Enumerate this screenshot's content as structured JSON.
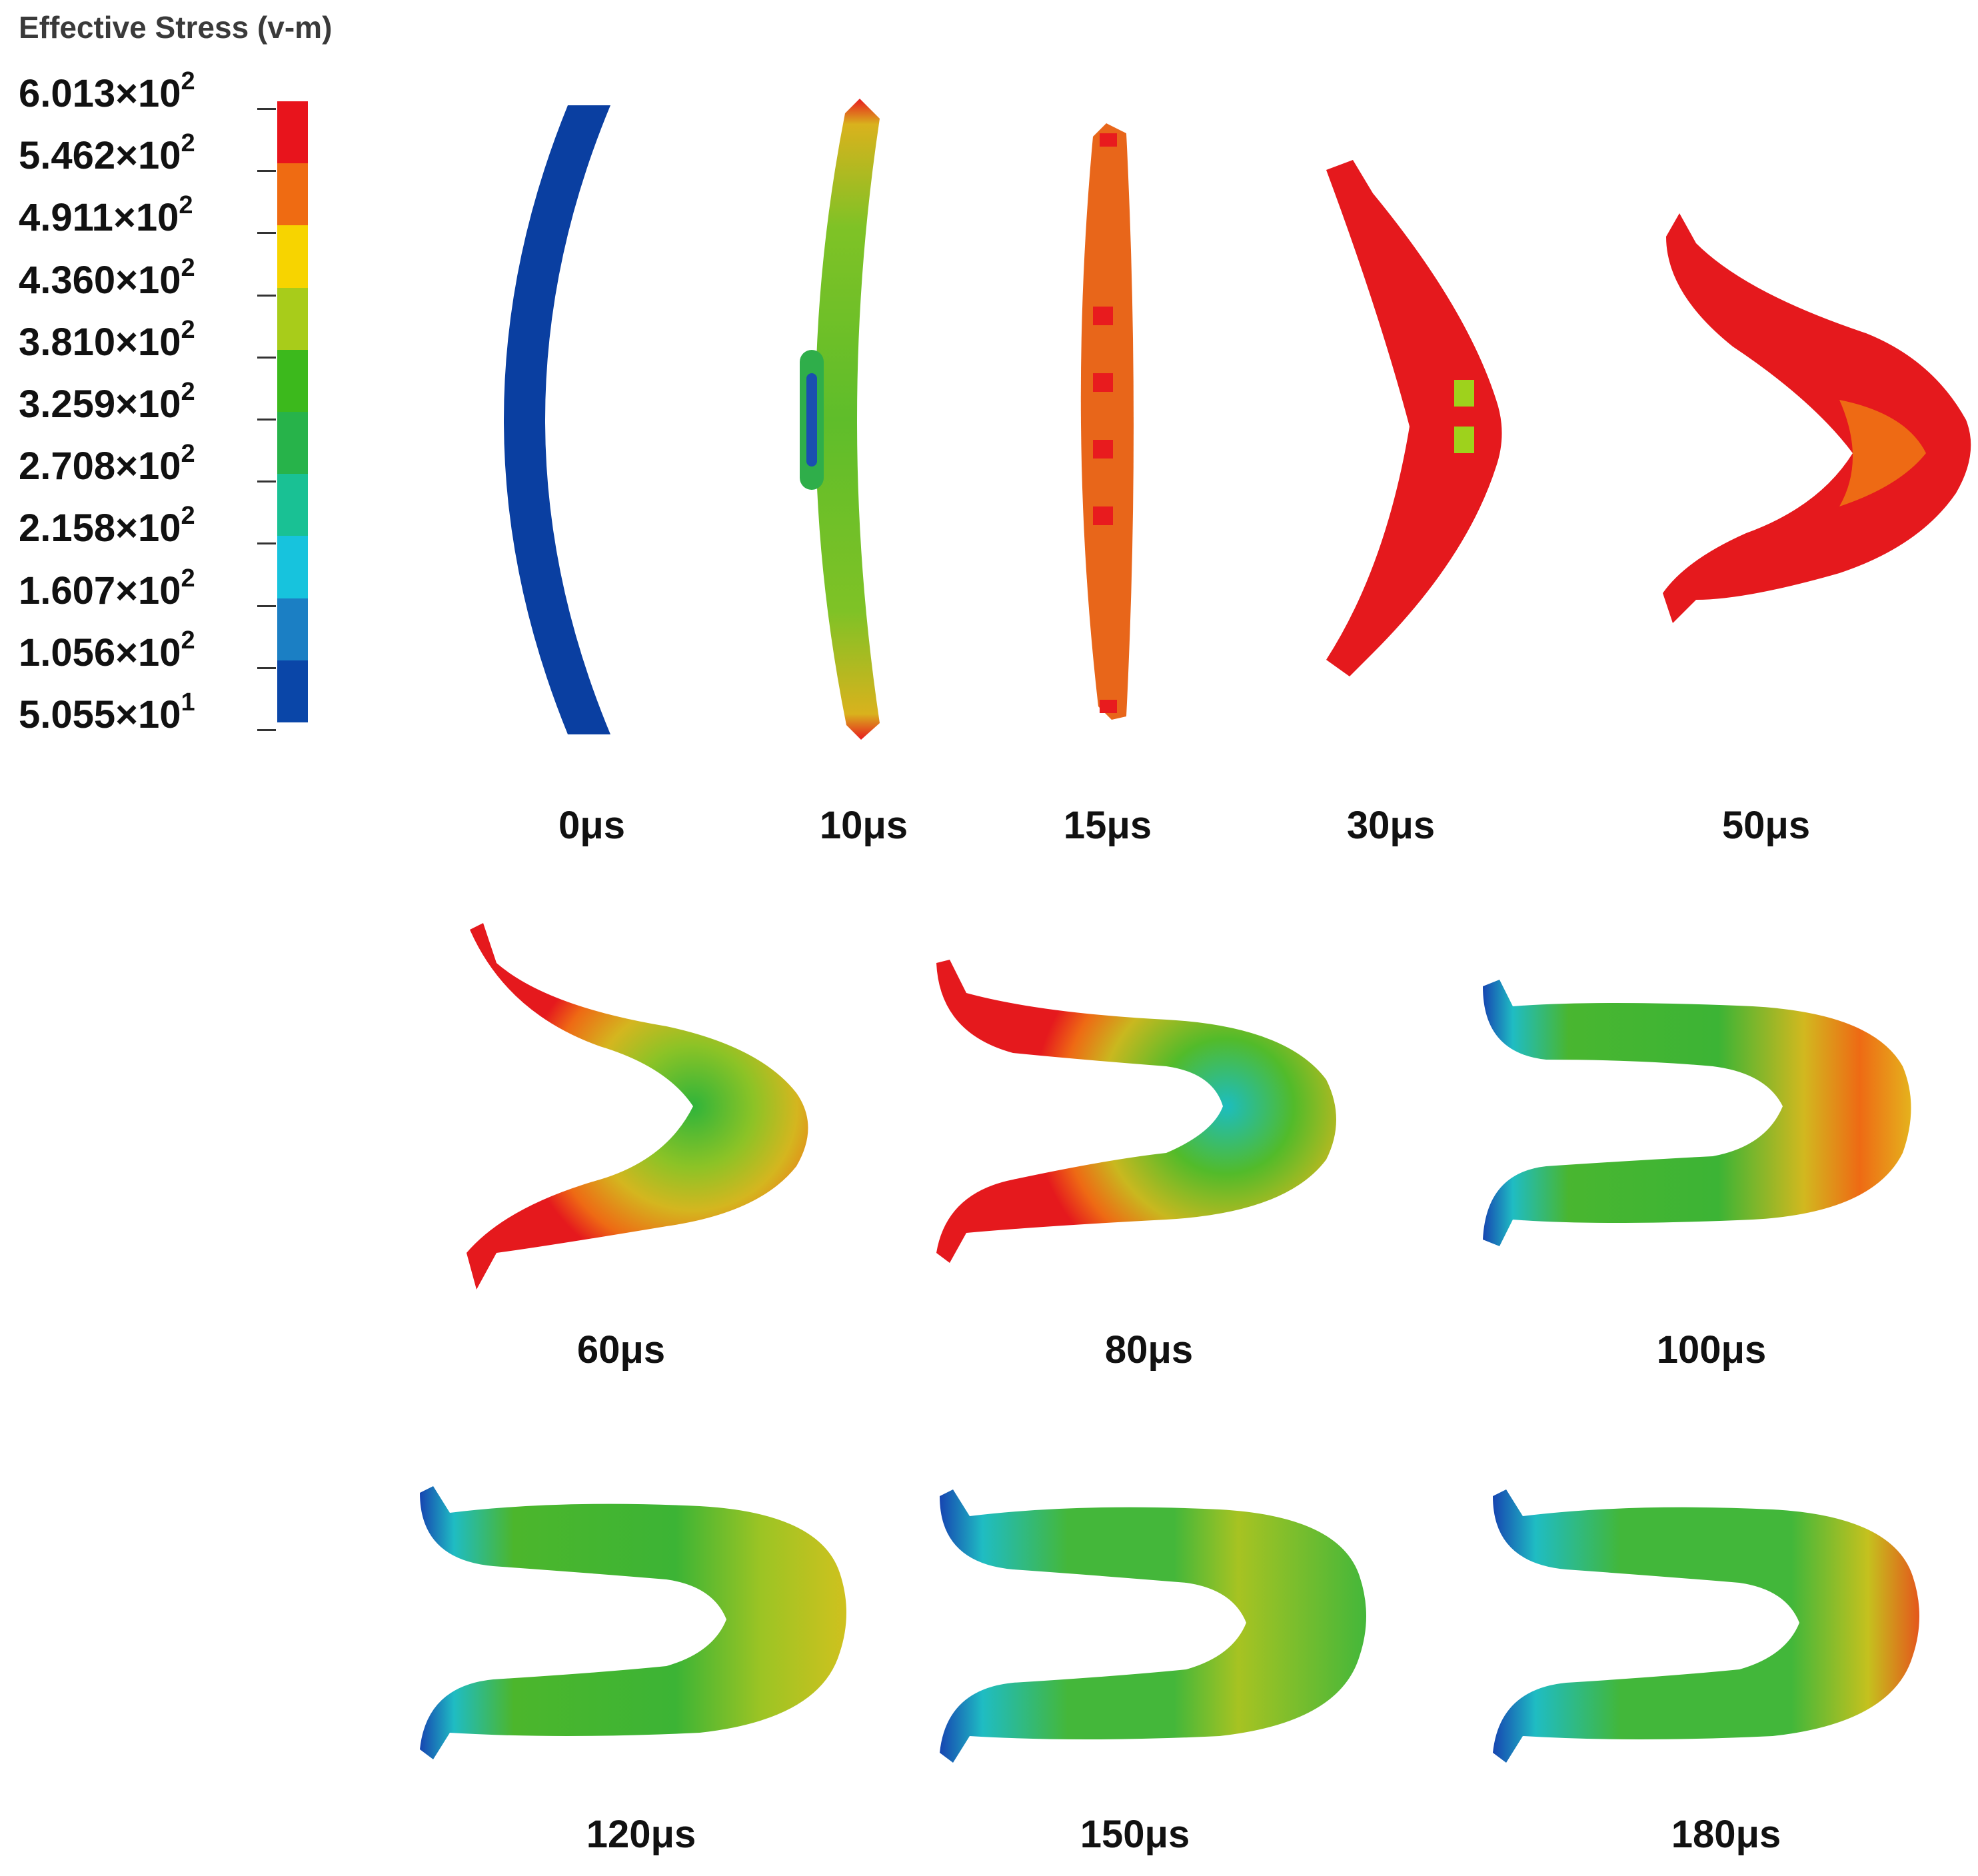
{
  "legend": {
    "title": "Effective Stress (v-m)",
    "levels": [
      {
        "mantissa": "6.013",
        "exp": "2"
      },
      {
        "mantissa": "5.462",
        "exp": "2"
      },
      {
        "mantissa": "4.911",
        "exp": "2"
      },
      {
        "mantissa": "4.360",
        "exp": "2"
      },
      {
        "mantissa": "3.810",
        "exp": "2"
      },
      {
        "mantissa": "3.259",
        "exp": "2"
      },
      {
        "mantissa": "2.708",
        "exp": "2"
      },
      {
        "mantissa": "2.158",
        "exp": "2"
      },
      {
        "mantissa": "1.607",
        "exp": "2"
      },
      {
        "mantissa": "1.056",
        "exp": "2"
      },
      {
        "mantissa": "5.055",
        "exp": "1"
      }
    ],
    "colors": [
      "#e8141c",
      "#ef6b12",
      "#f7d400",
      "#a8cc1a",
      "#3cb91c",
      "#27b34a",
      "#19c194",
      "#17c3dd",
      "#1b7fc4",
      "#0a46a8"
    ]
  },
  "frames": [
    {
      "label": "0μs",
      "colors": [
        "#0a3fa1"
      ]
    },
    {
      "label": "10μs",
      "colors": [
        "#7fc226",
        "#d9b21d",
        "#2fae4a",
        "#1a4fb0"
      ]
    },
    {
      "label": "15μs",
      "colors": [
        "#e8661a",
        "#e81b1e",
        "#a8c21f"
      ]
    },
    {
      "label": "30μs",
      "colors": [
        "#e5191d",
        "#9ed21c"
      ]
    },
    {
      "label": "50μs",
      "colors": [
        "#e5191d",
        "#ee6a14"
      ]
    },
    {
      "label": "60μs",
      "colors": [
        "#e5191d",
        "#ee6a14",
        "#c7c91c",
        "#4bbb22"
      ]
    },
    {
      "label": "80μs",
      "colors": [
        "#e5191d",
        "#ee6a14",
        "#52bb2a",
        "#1cbdbf"
      ]
    },
    {
      "label": "100μs",
      "colors": [
        "#49b630",
        "#e5191d",
        "#d2b81f",
        "#1fbcc3",
        "#1645b1"
      ]
    },
    {
      "label": "120μs",
      "colors": [
        "#4cb62c",
        "#bfc01f",
        "#1fbcc3",
        "#1645b1"
      ]
    },
    {
      "label": "150μs",
      "colors": [
        "#44b73a",
        "#e46a19",
        "#1fbcc3",
        "#1645b1"
      ]
    },
    {
      "label": "180μs",
      "colors": [
        "#42b73a",
        "#e4571b",
        "#1fbcc3",
        "#1645b1"
      ]
    }
  ]
}
